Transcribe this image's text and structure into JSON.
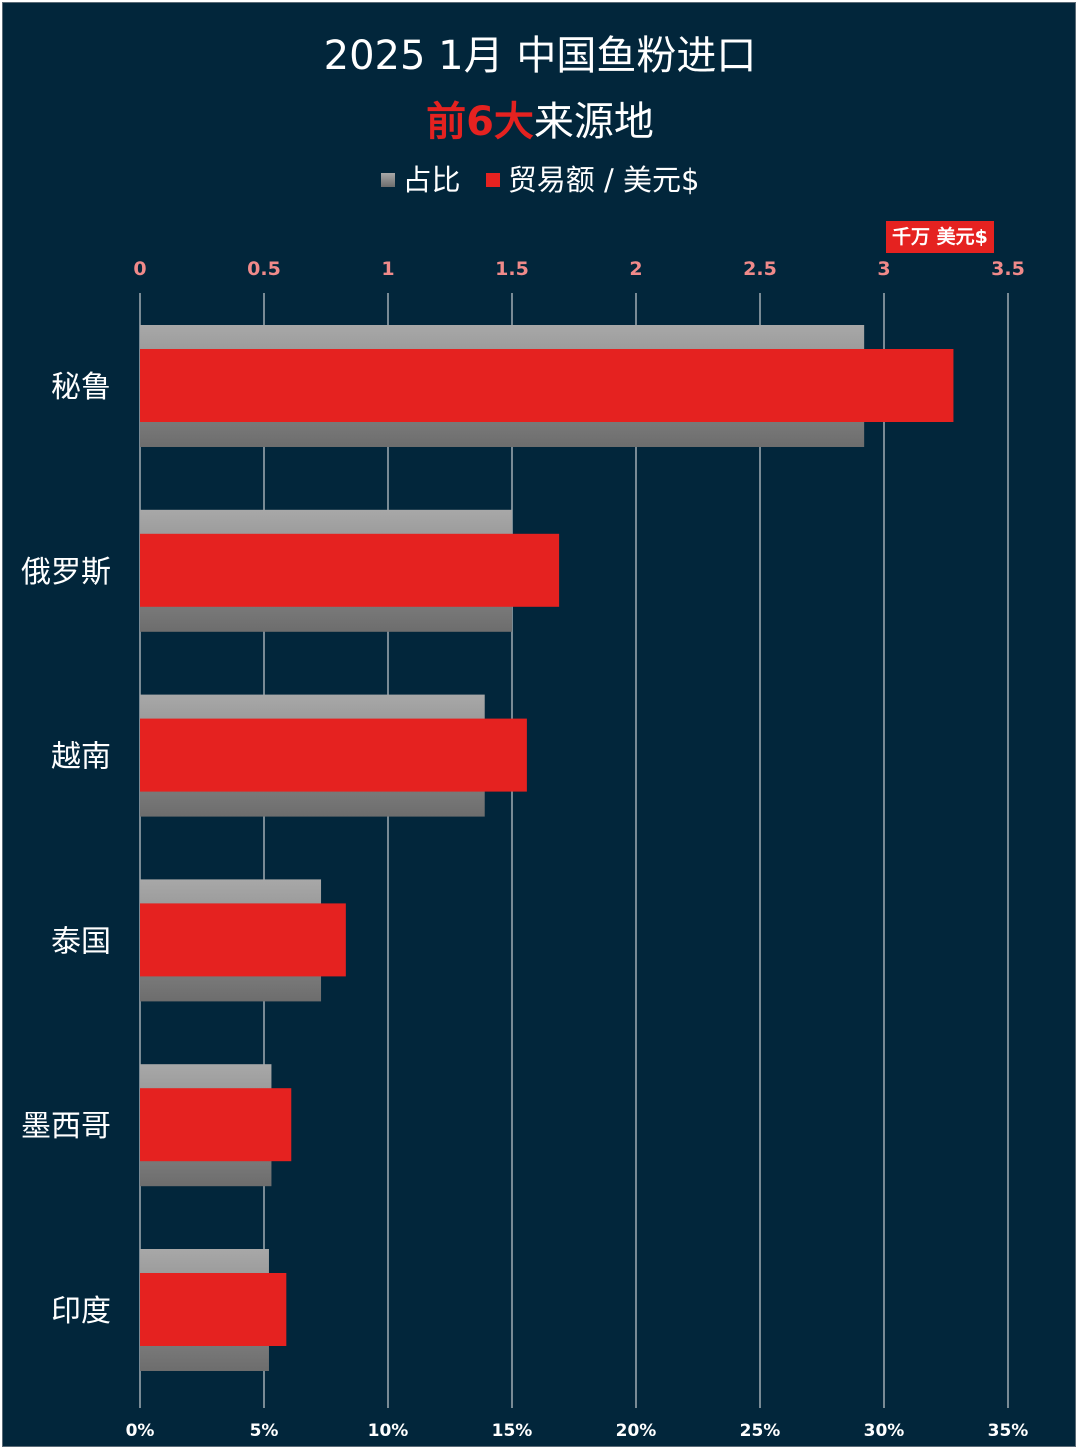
{
  "title_line1": "2025 1月 中国鱼粉进口",
  "title_line2_highlight": "前6大",
  "title_line2_rest": "来源地",
  "legend": {
    "share_label": "占比",
    "trade_label": "贸易额 / 美元$"
  },
  "unit_badge": "千万 美元$",
  "colors": {
    "background": "#02263b",
    "trade": "#e52220",
    "share_top": "#a8a8a8",
    "share_bottom": "#6d6d6d",
    "gridline": "#c8ccd0",
    "top_tick_text": "#f08a8a"
  },
  "chart_data": {
    "type": "bar",
    "orientation": "horizontal",
    "categories": [
      "秘鲁",
      "俄罗斯",
      "越南",
      "泰国",
      "墨西哥",
      "印度"
    ],
    "series": [
      {
        "name": "占比",
        "axis": "bottom",
        "unit": "%",
        "values": [
          29.2,
          15.0,
          13.9,
          7.3,
          5.3,
          5.2
        ]
      },
      {
        "name": "贸易额 / 美元$",
        "axis": "top",
        "unit": "千万 美元$",
        "values": [
          3.28,
          1.69,
          1.56,
          0.83,
          0.61,
          0.59
        ]
      }
    ],
    "top_axis": {
      "range": [
        0,
        3.5
      ],
      "ticks": [
        "0",
        "0.5",
        "1",
        "1.5",
        "2",
        "2.5",
        "3",
        "3.5"
      ]
    },
    "bottom_axis": {
      "range": [
        0,
        35
      ],
      "ticks": [
        "0%",
        "5%",
        "10%",
        "15%",
        "20%",
        "25%",
        "30%",
        "35%"
      ]
    },
    "grid": true,
    "legend_position": "top"
  }
}
